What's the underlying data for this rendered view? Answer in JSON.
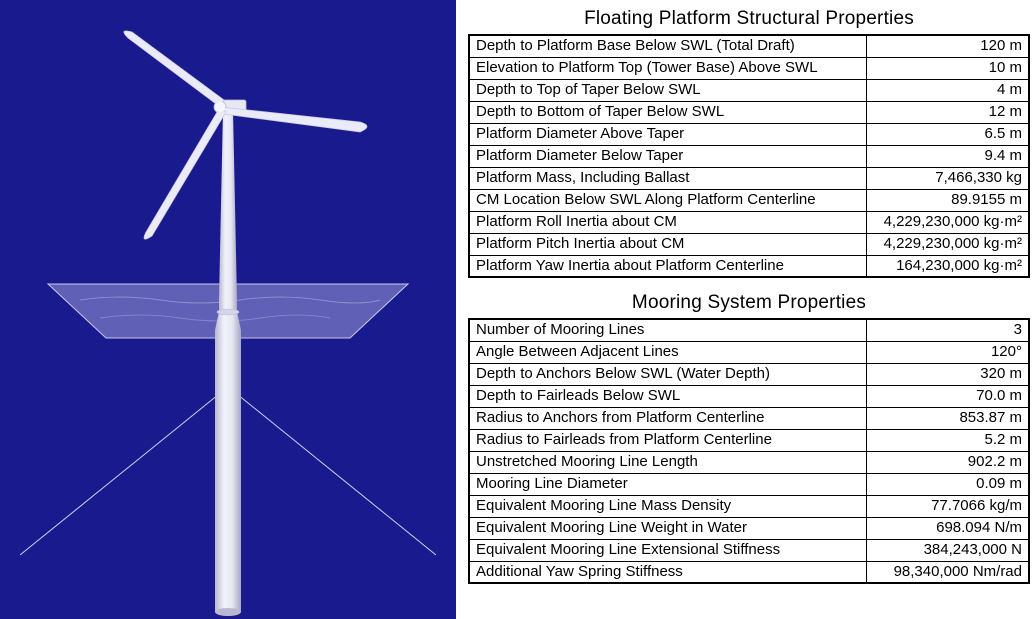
{
  "figure": {
    "background_color": "#1a1a8f",
    "turbine_color": "#e8e8f4",
    "turbine_shade": "#b8b8d0",
    "water_color": "#9a9ad8",
    "water_edge_color": "#c8c8ee",
    "line_color": "#d0d0f0",
    "description": "3D render of spar-buoy floating offshore wind turbine with water plane and three mooring lines"
  },
  "tables": {
    "font_size_title": 19,
    "font_size_body": 15,
    "border_color": "#000000",
    "col_widths_pct": [
      71,
      29
    ],
    "platform": {
      "title": "Floating Platform Structural Properties",
      "rows": [
        {
          "label": "Depth to Platform Base Below SWL (Total Draft)",
          "value": "120 m"
        },
        {
          "label": "Elevation to Platform Top (Tower Base) Above SWL",
          "value": "10 m"
        },
        {
          "label": "Depth to Top of Taper Below SWL",
          "value": "4 m"
        },
        {
          "label": "Depth to Bottom of Taper Below SWL",
          "value": "12 m"
        },
        {
          "label": "Platform Diameter Above Taper",
          "value": "6.5 m"
        },
        {
          "label": "Platform Diameter Below Taper",
          "value": "9.4 m"
        },
        {
          "label": "Platform Mass, Including Ballast",
          "value": "7,466,330 kg"
        },
        {
          "label": "CM Location Below SWL Along Platform Centerline",
          "value": "89.9155 m"
        },
        {
          "label": "Platform Roll Inertia about CM",
          "value": "4,229,230,000 kg·m²"
        },
        {
          "label": "Platform Pitch Inertia about CM",
          "value": "4,229,230,000 kg·m²"
        },
        {
          "label": "Platform Yaw Inertia about Platform Centerline",
          "value": "164,230,000 kg·m²"
        }
      ]
    },
    "mooring": {
      "title": "Mooring System Properties",
      "rows": [
        {
          "label": "Number of Mooring Lines",
          "value": "3"
        },
        {
          "label": "Angle Between Adjacent Lines",
          "value": "120°"
        },
        {
          "label": "Depth to Anchors Below SWL (Water Depth)",
          "value": "320 m"
        },
        {
          "label": "Depth to Fairleads Below SWL",
          "value": "70.0 m"
        },
        {
          "label": "Radius to Anchors from Platform Centerline",
          "value": "853.87 m"
        },
        {
          "label": "Radius to Fairleads from Platform Centerline",
          "value": "5.2 m"
        },
        {
          "label": "Unstretched Mooring Line Length",
          "value": "902.2 m"
        },
        {
          "label": "Mooring Line Diameter",
          "value": "0.09 m"
        },
        {
          "label": "Equivalent Mooring Line Mass Density",
          "value": "77.7066 kg/m"
        },
        {
          "label": "Equivalent Mooring Line Weight in Water",
          "value": "698.094 N/m"
        },
        {
          "label": "Equivalent Mooring Line Extensional Stiffness",
          "value": "384,243,000 N"
        },
        {
          "label": "Additional Yaw Spring Stiffness",
          "value": "98,340,000 Nm/rad"
        }
      ]
    }
  }
}
